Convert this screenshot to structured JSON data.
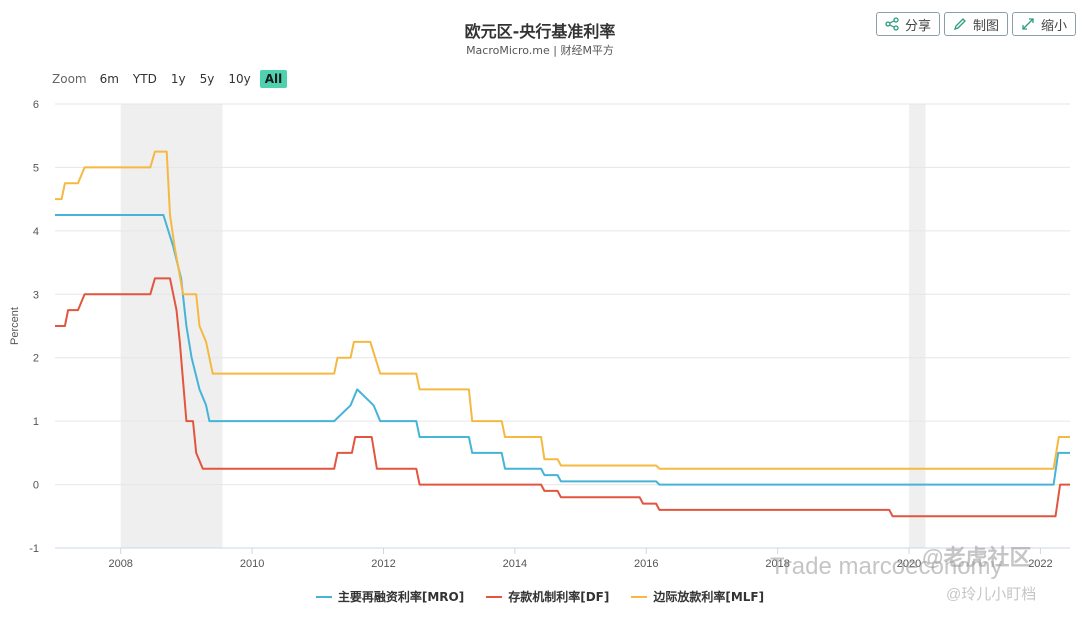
{
  "header": {
    "title": "欧元区-央行基准利率",
    "subtitle": "MacroMicro.me | 财经M平方"
  },
  "toolbar": {
    "share_label": "分享",
    "draw_label": "制图",
    "shrink_label": "缩小"
  },
  "zoom": {
    "label": "Zoom",
    "options": [
      "6m",
      "YTD",
      "1y",
      "5y",
      "10y",
      "All"
    ],
    "active": "All"
  },
  "watermark": {
    "line1": "Trade marcoeconomy",
    "line2": "@老虎社区",
    "line3": "@玲儿小盯档"
  },
  "colors": {
    "mro": "#46b3d8",
    "df": "#e2553f",
    "mlf": "#f5b942",
    "recession": "#efefef",
    "active_zoom": "#4fd1b0"
  },
  "chart_data": {
    "type": "line",
    "title": "欧元区-央行基准利率",
    "subtitle": "MacroMicro.me | 财经M平方",
    "xlabel": "",
    "ylabel": "Percent",
    "x_range": [
      2007.0,
      2022.45
    ],
    "ylim": [
      -1,
      6
    ],
    "y_ticks": [
      -1,
      0,
      1,
      2,
      3,
      4,
      5,
      6
    ],
    "x_ticks": [
      2008,
      2010,
      2012,
      2014,
      2016,
      2018,
      2020,
      2022
    ],
    "grid": true,
    "legend_position": "bottom",
    "shaded_periods": [
      [
        2008.0,
        2009.55
      ],
      [
        2020.0,
        2020.25
      ]
    ],
    "series": [
      {
        "name": "主要再融资利率[MRO]",
        "color": "#46b3d8",
        "points": [
          [
            2007.0,
            4.25
          ],
          [
            2008.65,
            4.25
          ],
          [
            2008.8,
            3.75
          ],
          [
            2008.92,
            3.25
          ],
          [
            2009.0,
            2.5
          ],
          [
            2009.08,
            2.0
          ],
          [
            2009.2,
            1.5
          ],
          [
            2009.3,
            1.25
          ],
          [
            2009.35,
            1.0
          ],
          [
            2011.25,
            1.0
          ],
          [
            2011.5,
            1.25
          ],
          [
            2011.6,
            1.5
          ],
          [
            2011.85,
            1.25
          ],
          [
            2011.95,
            1.0
          ],
          [
            2012.5,
            1.0
          ],
          [
            2012.55,
            0.75
          ],
          [
            2013.3,
            0.75
          ],
          [
            2013.35,
            0.5
          ],
          [
            2013.8,
            0.5
          ],
          [
            2013.85,
            0.25
          ],
          [
            2014.4,
            0.25
          ],
          [
            2014.45,
            0.15
          ],
          [
            2014.65,
            0.15
          ],
          [
            2014.7,
            0.05
          ],
          [
            2016.15,
            0.05
          ],
          [
            2016.2,
            0.0
          ],
          [
            2022.2,
            0.0
          ],
          [
            2022.27,
            0.5
          ],
          [
            2022.45,
            0.5
          ]
        ]
      },
      {
        "name": "存款机制利率[DF]",
        "color": "#e2553f",
        "points": [
          [
            2007.0,
            2.5
          ],
          [
            2007.15,
            2.5
          ],
          [
            2007.2,
            2.75
          ],
          [
            2007.35,
            2.75
          ],
          [
            2007.45,
            3.0
          ],
          [
            2008.45,
            3.0
          ],
          [
            2008.52,
            3.25
          ],
          [
            2008.75,
            3.25
          ],
          [
            2008.85,
            2.75
          ],
          [
            2008.9,
            2.25
          ],
          [
            2009.0,
            1.0
          ],
          [
            2009.1,
            1.0
          ],
          [
            2009.15,
            0.5
          ],
          [
            2009.25,
            0.25
          ],
          [
            2011.25,
            0.25
          ],
          [
            2011.3,
            0.5
          ],
          [
            2011.52,
            0.5
          ],
          [
            2011.57,
            0.75
          ],
          [
            2011.82,
            0.75
          ],
          [
            2011.9,
            0.25
          ],
          [
            2012.5,
            0.25
          ],
          [
            2012.55,
            0.0
          ],
          [
            2014.4,
            0.0
          ],
          [
            2014.45,
            -0.1
          ],
          [
            2014.65,
            -0.1
          ],
          [
            2014.7,
            -0.2
          ],
          [
            2015.9,
            -0.2
          ],
          [
            2015.95,
            -0.3
          ],
          [
            2016.15,
            -0.3
          ],
          [
            2016.2,
            -0.4
          ],
          [
            2019.7,
            -0.4
          ],
          [
            2019.75,
            -0.5
          ],
          [
            2022.23,
            -0.5
          ],
          [
            2022.3,
            0.0
          ],
          [
            2022.45,
            0.0
          ]
        ]
      },
      {
        "name": "边际放款利率[MLF]",
        "color": "#f5b942",
        "points": [
          [
            2007.0,
            4.5
          ],
          [
            2007.1,
            4.5
          ],
          [
            2007.15,
            4.75
          ],
          [
            2007.35,
            4.75
          ],
          [
            2007.45,
            5.0
          ],
          [
            2008.45,
            5.0
          ],
          [
            2008.52,
            5.25
          ],
          [
            2008.7,
            5.25
          ],
          [
            2008.75,
            4.25
          ],
          [
            2008.82,
            3.75
          ],
          [
            2008.95,
            3.0
          ],
          [
            2009.15,
            3.0
          ],
          [
            2009.2,
            2.5
          ],
          [
            2009.3,
            2.25
          ],
          [
            2009.4,
            1.75
          ],
          [
            2011.25,
            1.75
          ],
          [
            2011.3,
            2.0
          ],
          [
            2011.5,
            2.0
          ],
          [
            2011.55,
            2.25
          ],
          [
            2011.8,
            2.25
          ],
          [
            2011.95,
            1.75
          ],
          [
            2012.5,
            1.75
          ],
          [
            2012.55,
            1.5
          ],
          [
            2013.3,
            1.5
          ],
          [
            2013.35,
            1.0
          ],
          [
            2013.8,
            1.0
          ],
          [
            2013.85,
            0.75
          ],
          [
            2014.4,
            0.75
          ],
          [
            2014.45,
            0.4
          ],
          [
            2014.65,
            0.4
          ],
          [
            2014.7,
            0.3
          ],
          [
            2016.15,
            0.3
          ],
          [
            2016.2,
            0.25
          ],
          [
            2022.2,
            0.25
          ],
          [
            2022.28,
            0.75
          ],
          [
            2022.45,
            0.75
          ]
        ]
      }
    ]
  }
}
